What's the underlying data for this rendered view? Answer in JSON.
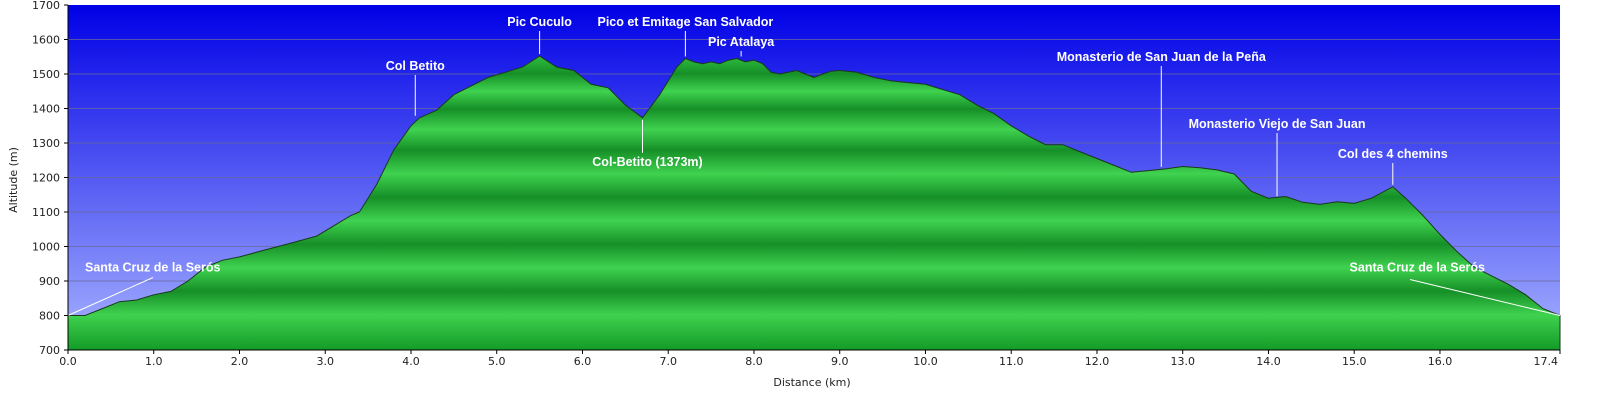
{
  "chart_data": {
    "type": "area",
    "title": "",
    "xlabel": "Distance (km)",
    "ylabel": "Altitude (m)",
    "xlim": [
      0,
      17.4
    ],
    "ylim": [
      700,
      1700
    ],
    "grid": true,
    "x_ticks": [
      "0.0",
      "1.0",
      "2.0",
      "3.0",
      "4.0",
      "5.0",
      "6.0",
      "7.0",
      "8.0",
      "9.0",
      "10.0",
      "11.0",
      "12.0",
      "13.0",
      "14.0",
      "15.0",
      "16.0",
      "17.4"
    ],
    "y_ticks": [
      "700",
      "800",
      "900",
      "1000",
      "1100",
      "1200",
      "1300",
      "1400",
      "1500",
      "1600",
      "1700"
    ],
    "colors": {
      "sky_top": "#0000e6",
      "sky_bottom": "#a8b4ff",
      "fill_light": "#3fd24f",
      "fill_dark": "#149a28",
      "outline": "#1a3a1a"
    },
    "series": [
      {
        "x": [
          0.0,
          0.2,
          0.4,
          0.6,
          0.8,
          1.0,
          1.2,
          1.4,
          1.6,
          1.8,
          2.0,
          2.3,
          2.6,
          2.9,
          3.1,
          3.3,
          3.4,
          3.6,
          3.8,
          4.0,
          4.1,
          4.3,
          4.5,
          4.7,
          4.9,
          5.1,
          5.3,
          5.5,
          5.7,
          5.9,
          6.1,
          6.3,
          6.5,
          6.7,
          6.9,
          7.1,
          7.2,
          7.3,
          7.4,
          7.5,
          7.6,
          7.7,
          7.8,
          7.9,
          8.0,
          8.1,
          8.2,
          8.3,
          8.4,
          8.5,
          8.6,
          8.7,
          8.8,
          8.9,
          9.0,
          9.2,
          9.4,
          9.6,
          9.8,
          10.0,
          10.2,
          10.4,
          10.6,
          10.8,
          11.0,
          11.2,
          11.4,
          11.6,
          11.8,
          12.0,
          12.2,
          12.4,
          12.6,
          12.8,
          13.0,
          13.2,
          13.4,
          13.6,
          13.8,
          14.0,
          14.2,
          14.4,
          14.6,
          14.8,
          15.0,
          15.2,
          15.45,
          15.6,
          15.8,
          16.0,
          16.2,
          16.4,
          16.6,
          16.8,
          17.0,
          17.2,
          17.4
        ],
        "y": [
          800,
          800,
          820,
          840,
          845,
          860,
          870,
          900,
          940,
          960,
          970,
          990,
          1010,
          1030,
          1060,
          1090,
          1100,
          1180,
          1280,
          1350,
          1373,
          1395,
          1440,
          1465,
          1490,
          1505,
          1520,
          1552,
          1520,
          1510,
          1470,
          1460,
          1410,
          1373,
          1440,
          1520,
          1545,
          1535,
          1530,
          1535,
          1530,
          1540,
          1545,
          1535,
          1540,
          1530,
          1505,
          1500,
          1505,
          1510,
          1500,
          1490,
          1500,
          1508,
          1510,
          1505,
          1490,
          1480,
          1475,
          1470,
          1455,
          1440,
          1410,
          1385,
          1350,
          1320,
          1295,
          1295,
          1275,
          1255,
          1235,
          1215,
          1220,
          1225,
          1232,
          1228,
          1222,
          1210,
          1160,
          1140,
          1145,
          1128,
          1122,
          1130,
          1125,
          1140,
          1173,
          1140,
          1090,
          1035,
          985,
          940,
          915,
          890,
          860,
          820,
          800
        ]
      }
    ],
    "annotations": [
      {
        "text": "Pic Cuculo",
        "x": 5.5,
        "y": 1552,
        "position": "above"
      },
      {
        "text": "Pico et Emitage San Salvador",
        "x": 7.2,
        "y": 1545,
        "position": "above"
      },
      {
        "text": "Pic Atalaya",
        "x": 7.85,
        "y": 1545,
        "position": "above"
      },
      {
        "text": "Col Betito",
        "x": 4.05,
        "y": 1373,
        "position": "above"
      },
      {
        "text": "Col-Betito (1373m)",
        "x": 6.7,
        "y": 1373,
        "position": "below"
      },
      {
        "text": "Monasterio de San Juan de la Peña",
        "x": 12.75,
        "y": 1225,
        "position": "above"
      },
      {
        "text": "Monasterio Viejo de San Juan",
        "x": 14.1,
        "y": 1140,
        "position": "above"
      },
      {
        "text": "Col des 4 chemins",
        "x": 15.45,
        "y": 1173,
        "position": "above"
      },
      {
        "text": "Santa Cruz de la Serós",
        "x": 0.0,
        "y": 800,
        "position": "right"
      },
      {
        "text": "Santa Cruz de la Serós",
        "x": 17.4,
        "y": 800,
        "position": "left"
      }
    ]
  }
}
